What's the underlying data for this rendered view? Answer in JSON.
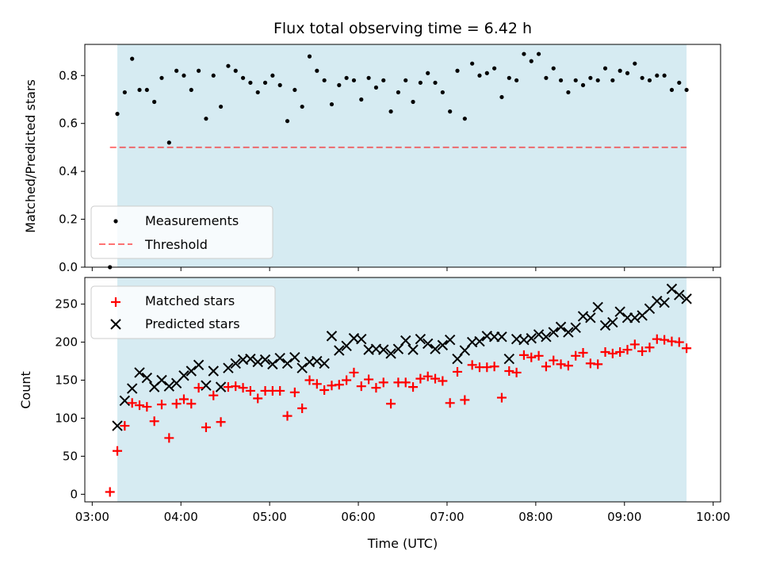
{
  "chart_data": [
    {
      "type": "scatter",
      "title": "Flux total observing time = 6.42 h",
      "ylabel": "Matched/Predicted stars",
      "ylim": [
        0,
        0.93
      ],
      "yticks": [
        "0.0",
        "0.2",
        "0.4",
        "0.6",
        "0.8"
      ],
      "shaded_interval": [
        "03:17",
        "09:42"
      ],
      "threshold": 0.5,
      "legend_position": "lower-left",
      "legend": [
        "Measurements",
        "Threshold"
      ],
      "series": [
        {
          "name": "Measurements",
          "marker": "dot",
          "color": "#000000",
          "x": [
            "03:12",
            "03:17",
            "03:22",
            "03:27",
            "03:32",
            "03:37",
            "03:42",
            "03:47",
            "03:52",
            "03:57",
            "04:02",
            "04:07",
            "04:12",
            "04:17",
            "04:22",
            "04:27",
            "04:32",
            "04:37",
            "04:42",
            "04:47",
            "04:52",
            "04:57",
            "05:02",
            "05:07",
            "05:12",
            "05:17",
            "05:22",
            "05:27",
            "05:32",
            "05:37",
            "05:42",
            "05:47",
            "05:52",
            "05:57",
            "06:02",
            "06:07",
            "06:12",
            "06:17",
            "06:22",
            "06:27",
            "06:32",
            "06:37",
            "06:42",
            "06:47",
            "06:52",
            "06:57",
            "07:02",
            "07:07",
            "07:12",
            "07:17",
            "07:22",
            "07:27",
            "07:32",
            "07:37",
            "07:42",
            "07:47",
            "07:52",
            "07:57",
            "08:02",
            "08:07",
            "08:12",
            "08:17",
            "08:22",
            "08:27",
            "08:32",
            "08:37",
            "08:42",
            "08:47",
            "08:52",
            "08:57",
            "09:02",
            "09:07",
            "09:12",
            "09:17",
            "09:22",
            "09:27",
            "09:32",
            "09:37",
            "09:42"
          ],
          "y": [
            0.0,
            0.64,
            0.73,
            0.87,
            0.74,
            0.74,
            0.69,
            0.79,
            0.52,
            0.82,
            0.8,
            0.74,
            0.82,
            0.62,
            0.8,
            0.67,
            0.84,
            0.82,
            0.79,
            0.77,
            0.73,
            0.77,
            0.8,
            0.76,
            0.61,
            0.74,
            0.67,
            0.88,
            0.82,
            0.78,
            0.68,
            0.76,
            0.79,
            0.78,
            0.7,
            0.79,
            0.75,
            0.78,
            0.65,
            0.73,
            0.78,
            0.69,
            0.77,
            0.81,
            0.77,
            0.73,
            0.65,
            0.82,
            0.62,
            0.85,
            0.8,
            0.81,
            0.83,
            0.71,
            0.79,
            0.78,
            0.89,
            0.86,
            0.89,
            0.79,
            0.83,
            0.78,
            0.73,
            0.78,
            0.76,
            0.79,
            0.78,
            0.83,
            0.78,
            0.82,
            0.81,
            0.85,
            0.79,
            0.78,
            0.8,
            0.8,
            0.74,
            0.77,
            0.74
          ]
        }
      ]
    },
    {
      "type": "scatter",
      "xlabel": "Time (UTC)",
      "ylabel": "Count",
      "ylim": [
        -10,
        285
      ],
      "yticks": [
        "0",
        "50",
        "100",
        "150",
        "200",
        "250"
      ],
      "xticks": [
        "03:00",
        "04:00",
        "05:00",
        "06:00",
        "07:00",
        "08:00",
        "09:00",
        "10:00"
      ],
      "shaded_interval": [
        "03:17",
        "09:42"
      ],
      "legend_position": "upper-left",
      "legend": [
        "Matched stars",
        "Predicted stars"
      ],
      "series": [
        {
          "name": "Matched stars",
          "marker": "plus",
          "color": "#ff0000",
          "x": [
            "03:12",
            "03:17",
            "03:22",
            "03:27",
            "03:32",
            "03:37",
            "03:42",
            "03:47",
            "03:52",
            "03:57",
            "04:02",
            "04:07",
            "04:12",
            "04:17",
            "04:22",
            "04:27",
            "04:32",
            "04:37",
            "04:42",
            "04:47",
            "04:52",
            "04:57",
            "05:02",
            "05:07",
            "05:12",
            "05:17",
            "05:22",
            "05:27",
            "05:32",
            "05:37",
            "05:42",
            "05:47",
            "05:52",
            "05:57",
            "06:02",
            "06:07",
            "06:12",
            "06:17",
            "06:22",
            "06:27",
            "06:32",
            "06:37",
            "06:42",
            "06:47",
            "06:52",
            "06:57",
            "07:02",
            "07:07",
            "07:12",
            "07:17",
            "07:22",
            "07:27",
            "07:32",
            "07:37",
            "07:42",
            "07:47",
            "07:52",
            "07:57",
            "08:02",
            "08:07",
            "08:12",
            "08:17",
            "08:22",
            "08:27",
            "08:32",
            "08:37",
            "08:42",
            "08:47",
            "08:52",
            "08:57",
            "09:02",
            "09:07",
            "09:12",
            "09:17",
            "09:22",
            "09:27",
            "09:32",
            "09:37",
            "09:42"
          ],
          "y": [
            3,
            57,
            90,
            120,
            117,
            115,
            96,
            118,
            74,
            119,
            125,
            119,
            140,
            88,
            130,
            95,
            141,
            142,
            140,
            136,
            126,
            136,
            136,
            136,
            103,
            134,
            113,
            150,
            145,
            137,
            143,
            144,
            150,
            160,
            142,
            151,
            140,
            147,
            119,
            147,
            147,
            141,
            152,
            155,
            152,
            149,
            120,
            161,
            124,
            170,
            167,
            167,
            168,
            127,
            162,
            160,
            183,
            180,
            182,
            168,
            176,
            171,
            169,
            182,
            186,
            172,
            171,
            187,
            185,
            187,
            190,
            197,
            188,
            193,
            204,
            203,
            201,
            200,
            192
          ]
        },
        {
          "name": "Predicted stars",
          "marker": "x",
          "color": "#000000",
          "x": [
            "03:17",
            "03:22",
            "03:27",
            "03:32",
            "03:37",
            "03:42",
            "03:47",
            "03:52",
            "03:57",
            "04:02",
            "04:07",
            "04:12",
            "04:17",
            "04:22",
            "04:27",
            "04:32",
            "04:37",
            "04:42",
            "04:47",
            "04:52",
            "04:57",
            "05:02",
            "05:07",
            "05:12",
            "05:17",
            "05:22",
            "05:27",
            "05:32",
            "05:37",
            "05:42",
            "05:47",
            "05:52",
            "05:57",
            "06:02",
            "06:07",
            "06:12",
            "06:17",
            "06:22",
            "06:27",
            "06:32",
            "06:37",
            "06:42",
            "06:47",
            "06:52",
            "06:57",
            "07:02",
            "07:07",
            "07:12",
            "07:17",
            "07:22",
            "07:27",
            "07:32",
            "07:37",
            "07:42",
            "07:47",
            "07:52",
            "07:57",
            "08:02",
            "08:07",
            "08:12",
            "08:17",
            "08:22",
            "08:27",
            "08:32",
            "08:37",
            "08:42",
            "08:47",
            "08:52",
            "08:57",
            "09:02",
            "09:07",
            "09:12",
            "09:17",
            "09:22",
            "09:27",
            "09:32",
            "09:37",
            "09:42"
          ],
          "y": [
            90,
            123,
            139,
            160,
            153,
            141,
            150,
            142,
            146,
            156,
            162,
            170,
            143,
            162,
            141,
            166,
            172,
            177,
            178,
            174,
            177,
            171,
            179,
            172,
            180,
            166,
            174,
            175,
            172,
            208,
            189,
            195,
            205,
            204,
            190,
            191,
            190,
            185,
            191,
            202,
            190,
            204,
            198,
            191,
            196,
            203,
            178,
            189,
            200,
            201,
            208,
            207,
            207,
            178,
            204,
            203,
            205,
            210,
            207,
            213,
            220,
            213,
            219,
            234,
            232,
            246,
            222,
            226,
            240,
            232,
            232,
            235,
            244,
            254,
            252,
            270,
            262,
            257
          ]
        }
      ]
    }
  ]
}
